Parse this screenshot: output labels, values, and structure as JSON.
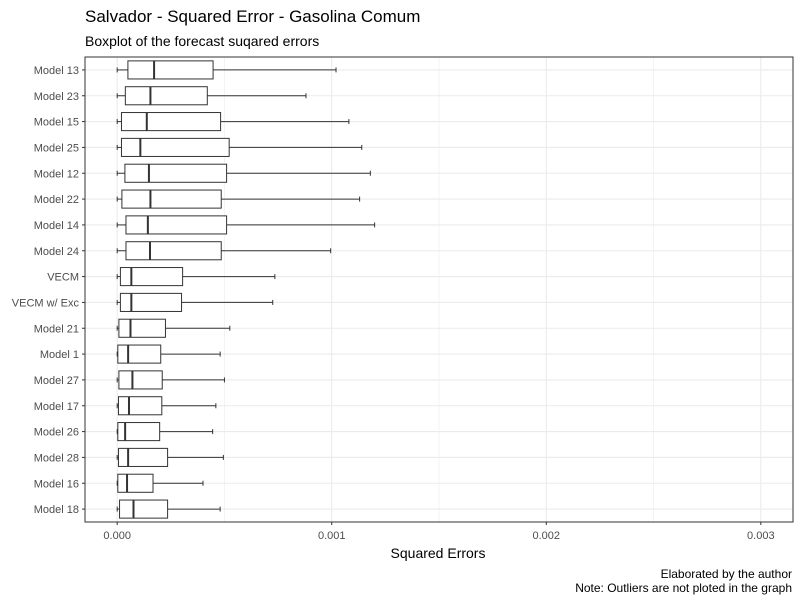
{
  "chart_data": {
    "type": "boxplot",
    "orientation": "horizontal",
    "title": "Salvador - Squared Error - Gasolina Comum",
    "subtitle": "Boxplot of the forecast suqared errors",
    "xlabel": "Squared Errors",
    "ylabel": "",
    "xlim": [
      -0.00015,
      0.00315
    ],
    "x_ticks": [
      0,
      0.001,
      0.002,
      0.003
    ],
    "x_tick_labels": [
      "0.000",
      "0.001",
      "0.002",
      "0.003"
    ],
    "grid": true,
    "legend": "none",
    "caption": [
      "Elaborated by the author",
      "Note: Outliers are not ploted in the graph"
    ],
    "categories": [
      "Model 13",
      "Model 23",
      "Model 15",
      "Model 25",
      "Model 12",
      "Model 22",
      "Model 14",
      "Model 24",
      "VECM",
      "VECM w/ Exc",
      "Model 21",
      "Model 1",
      "Model 27",
      "Model 17",
      "Model 26",
      "Model 28",
      "Model 16",
      "Model 18"
    ],
    "boxes": [
      {
        "min": 0.0,
        "q1": 5e-05,
        "median": 0.000172,
        "q3": 0.000447,
        "max": 0.00102
      },
      {
        "min": 0.0,
        "q1": 3.8e-05,
        "median": 0.000155,
        "q3": 0.00042,
        "max": 0.00088
      },
      {
        "min": 0.0,
        "q1": 2e-05,
        "median": 0.000138,
        "q3": 0.000482,
        "max": 0.00108
      },
      {
        "min": 0.0,
        "q1": 2e-05,
        "median": 0.000108,
        "q3": 0.000522,
        "max": 0.00114
      },
      {
        "min": 0.0,
        "q1": 3.6e-05,
        "median": 0.000148,
        "q3": 0.00051,
        "max": 0.00118
      },
      {
        "min": 0.0,
        "q1": 2.2e-05,
        "median": 0.000155,
        "q3": 0.000485,
        "max": 0.00113
      },
      {
        "min": 0.0,
        "q1": 4.1e-05,
        "median": 0.000143,
        "q3": 0.00051,
        "max": 0.0012
      },
      {
        "min": 0.0,
        "q1": 4.1e-05,
        "median": 0.000153,
        "q3": 0.000485,
        "max": 0.000995
      },
      {
        "min": 0.0,
        "q1": 1.5e-05,
        "median": 6.6e-05,
        "q3": 0.000305,
        "max": 0.000735
      },
      {
        "min": 0.0,
        "q1": 1.5e-05,
        "median": 6.6e-05,
        "q3": 0.0003,
        "max": 0.000725
      },
      {
        "min": 0.0,
        "q1": 8e-06,
        "median": 6.2e-05,
        "q3": 0.000225,
        "max": 0.000525
      },
      {
        "min": 0.0,
        "q1": 3e-06,
        "median": 5.1e-05,
        "q3": 0.000203,
        "max": 0.00048
      },
      {
        "min": 0.0,
        "q1": 8e-06,
        "median": 7.1e-05,
        "q3": 0.00021,
        "max": 0.0005
      },
      {
        "min": 0.0,
        "q1": 6e-06,
        "median": 5.5e-05,
        "q3": 0.000208,
        "max": 0.00046
      },
      {
        "min": 0.0,
        "q1": 3e-06,
        "median": 3.7e-05,
        "q3": 0.000198,
        "max": 0.000445
      },
      {
        "min": 0.0,
        "q1": 6e-06,
        "median": 5.1e-05,
        "q3": 0.000235,
        "max": 0.000495
      },
      {
        "min": 0.0,
        "q1": 3e-06,
        "median": 4.6e-05,
        "q3": 0.000167,
        "max": 0.0004
      },
      {
        "min": 0.0,
        "q1": 1.1e-05,
        "median": 7.6e-05,
        "q3": 0.000235,
        "max": 0.00048
      }
    ],
    "colors": {
      "box_fill": "#ffffff",
      "box_stroke": "#333333",
      "grid": "#ebebeb",
      "panel_border": "#333333"
    }
  }
}
